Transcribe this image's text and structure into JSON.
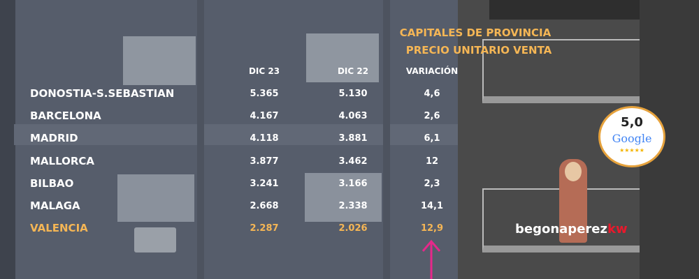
{
  "title": [
    "CAPITALES DE PROVINCIA",
    "PRECIO UNITARIO VENTA"
  ],
  "table": {
    "header": [
      "DIC 23",
      "DIC 22",
      "VARIACIÓN"
    ],
    "rows": [
      [
        "DONOSTIA-S.SEBASTIAN",
        "5.365",
        "5.130",
        "4,6"
      ],
      [
        "BARCELONA",
        "4.167",
        "4.063",
        "2,6"
      ],
      [
        "MADRID",
        "4.118",
        "3.881",
        "6,1"
      ],
      [
        "MALLORCA",
        "3.877",
        "3.462",
        "12"
      ],
      [
        "BILBAO",
        "3.241",
        "3.166",
        "2,3"
      ],
      [
        "MALAGA",
        "2.668",
        "2.338",
        "14,1"
      ],
      [
        "VALENCIA",
        "2.287",
        "2.026",
        "12,9"
      ]
    ],
    "highlight_row": 6
  },
  "badge": {
    "rating": "5,0",
    "brand": "Google",
    "stars": "★★★★★"
  },
  "signature": {
    "name": "begonaperez",
    "suffix": "kw"
  }
}
